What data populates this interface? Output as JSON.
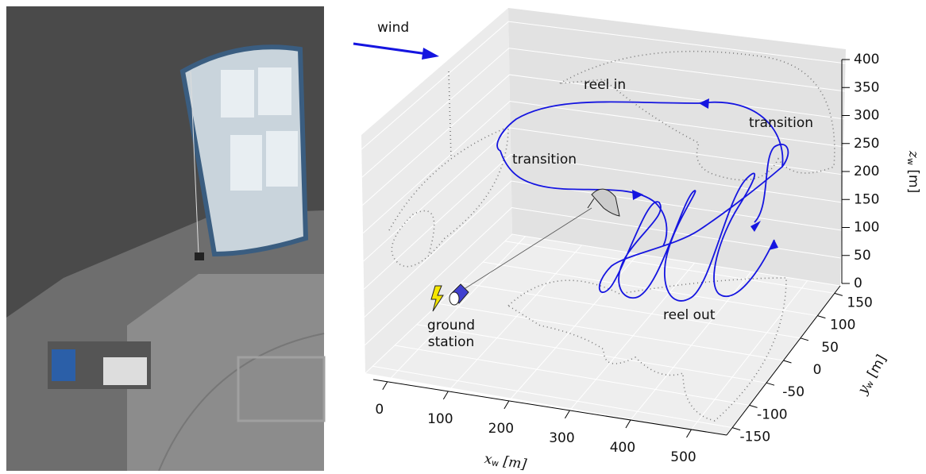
{
  "annotations": {
    "wind": "wind",
    "reel_in": "reel in",
    "transition_top": "transition",
    "transition_left": "transition",
    "reel_out": "reel out",
    "ground_station": [
      "ground",
      "station"
    ]
  },
  "axes": {
    "x": {
      "var": "x",
      "sub": "w",
      "unit": " [m]",
      "ticks": [
        0,
        100,
        200,
        300,
        400,
        500
      ]
    },
    "y": {
      "var": "y",
      "sub": "w",
      "unit": " [m]",
      "ticks": [
        150,
        100,
        50,
        0,
        -50,
        -100,
        -150
      ]
    },
    "z": {
      "var": "z",
      "sub": "w",
      "unit": " [m]",
      "ticks": [
        0,
        50,
        100,
        150,
        200,
        250,
        300,
        350,
        400
      ]
    }
  }
}
